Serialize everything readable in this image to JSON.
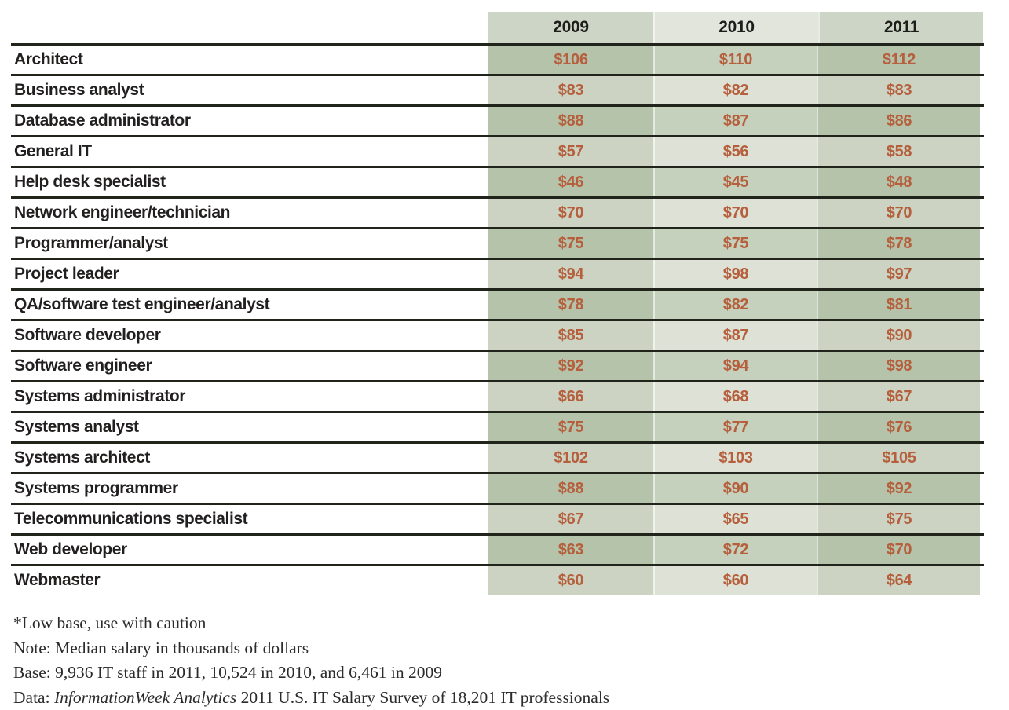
{
  "chart_data": {
    "type": "table",
    "title": "",
    "columns": [
      "2009",
      "2010",
      "2011"
    ],
    "value_prefix": "$",
    "units": "Median salary in thousands of dollars",
    "rows": [
      {
        "label": "Architect",
        "values": [
          106,
          110,
          112
        ]
      },
      {
        "label": "Business analyst",
        "values": [
          83,
          82,
          83
        ]
      },
      {
        "label": "Database administrator",
        "values": [
          88,
          87,
          86
        ]
      },
      {
        "label": "General IT",
        "values": [
          57,
          56,
          58
        ]
      },
      {
        "label": "Help desk specialist",
        "values": [
          46,
          45,
          48
        ]
      },
      {
        "label": "Network engineer/technician",
        "values": [
          70,
          70,
          70
        ]
      },
      {
        "label": "Programmer/analyst",
        "values": [
          75,
          75,
          78
        ]
      },
      {
        "label": "Project leader",
        "values": [
          94,
          98,
          97
        ]
      },
      {
        "label": "QA/software test engineer/analyst",
        "values": [
          78,
          82,
          81
        ]
      },
      {
        "label": "Software developer",
        "values": [
          85,
          87,
          90
        ]
      },
      {
        "label": "Software engineer",
        "values": [
          92,
          94,
          98
        ]
      },
      {
        "label": "Systems administrator",
        "values": [
          66,
          68,
          67
        ]
      },
      {
        "label": "Systems analyst",
        "values": [
          75,
          77,
          76
        ]
      },
      {
        "label": "Systems architect",
        "values": [
          102,
          103,
          105
        ]
      },
      {
        "label": "Systems programmer",
        "values": [
          88,
          90,
          92
        ]
      },
      {
        "label": "Telecommunications specialist",
        "values": [
          67,
          65,
          75
        ]
      },
      {
        "label": "Web developer",
        "values": [
          63,
          72,
          70
        ]
      },
      {
        "label": "Webmaster",
        "values": [
          60,
          60,
          64
        ]
      }
    ]
  },
  "footnotes": [
    {
      "segments": [
        {
          "text": "*Low base, use with caution",
          "italic": false
        }
      ]
    },
    {
      "segments": [
        {
          "text": "Note: Median salary in thousands of dollars",
          "italic": false
        }
      ]
    },
    {
      "segments": [
        {
          "text": "Base: 9,936 IT staff in 2011, 10,524 in 2010, and 6,461 in 2009",
          "italic": false
        }
      ]
    },
    {
      "segments": [
        {
          "text": "Data: ",
          "italic": false
        },
        {
          "text": "InformationWeek Analytics",
          "italic": true
        },
        {
          "text": " 2011 U.S. IT Salary Survey of 18,201 IT professionals",
          "italic": false
        }
      ]
    }
  ],
  "colors": {
    "page_bg": "#ffffff",
    "header_side": "#cdd5c6",
    "header_mid": "#e2e5dc",
    "cell_dark_side": "#b6c3ab",
    "cell_dark_mid": "#c5d1bd",
    "cell_light_side": "#ccd3c2",
    "cell_light_mid": "#dee2d6",
    "line_color": "#20241a",
    "value_text": "#b55f3d",
    "label_text": "#221f1f",
    "header_text": "#1d1d1b",
    "footnote_text": "#2b2b2b"
  }
}
